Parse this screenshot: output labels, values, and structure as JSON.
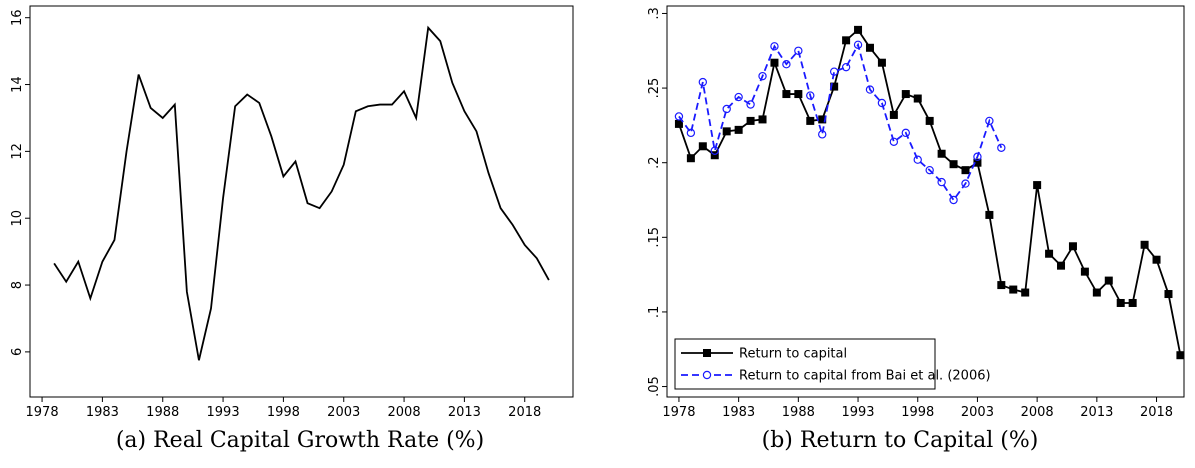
{
  "chart_data": [
    {
      "type": "line",
      "title": "(a) Real Capital Growth Rate (%)",
      "x": [
        1979,
        1980,
        1981,
        1982,
        1983,
        1984,
        1985,
        1986,
        1987,
        1988,
        1989,
        1990,
        1991,
        1992,
        1993,
        1994,
        1995,
        1996,
        1997,
        1998,
        1999,
        2000,
        2001,
        2002,
        2003,
        2004,
        2005,
        2006,
        2007,
        2008,
        2009,
        2010,
        2011,
        2012,
        2013,
        2014,
        2015,
        2016,
        2017,
        2018,
        2019,
        2020
      ],
      "series": [
        {
          "color": "#000000",
          "line_style": "solid",
          "marker": "none",
          "values": [
            8.65,
            8.1,
            8.7,
            7.6,
            8.7,
            9.35,
            12.0,
            14.3,
            13.3,
            13.0,
            13.4,
            7.8,
            5.75,
            7.3,
            10.6,
            13.35,
            13.7,
            13.45,
            12.45,
            11.25,
            11.7,
            10.45,
            10.3,
            10.8,
            11.6,
            13.2,
            13.35,
            13.4,
            13.4,
            13.8,
            13.0,
            15.7,
            15.3,
            14.05,
            13.2,
            12.6,
            11.35,
            10.3,
            9.8,
            9.2,
            8.8,
            8.15
          ]
        }
      ],
      "xlim": [
        1977,
        2022
      ],
      "xticks": [
        1978,
        1983,
        1988,
        1993,
        1998,
        2003,
        2008,
        2013,
        2018
      ],
      "ylim": [
        4.65,
        16.35
      ],
      "yticks": [
        6,
        8,
        10,
        12,
        14,
        16
      ]
    },
    {
      "type": "line",
      "title": "(b) Return to Capital (%)",
      "x": [
        1978,
        1979,
        1980,
        1981,
        1982,
        1983,
        1984,
        1985,
        1986,
        1987,
        1988,
        1989,
        1990,
        1991,
        1992,
        1993,
        1994,
        1995,
        1996,
        1997,
        1998,
        1999,
        2000,
        2001,
        2002,
        2003,
        2004,
        2005,
        2006,
        2007,
        2008,
        2009,
        2010,
        2011,
        2012,
        2013,
        2014,
        2015,
        2016,
        2017,
        2018,
        2019,
        2020
      ],
      "series": [
        {
          "name": "Return to capital",
          "color": "#000000",
          "line_style": "solid",
          "marker": "square",
          "values": [
            0.226,
            0.203,
            0.211,
            0.205,
            0.221,
            0.222,
            0.228,
            0.229,
            0.267,
            0.246,
            0.246,
            0.228,
            0.229,
            0.251,
            0.282,
            0.289,
            0.277,
            0.267,
            0.232,
            0.246,
            0.243,
            0.228,
            0.206,
            0.199,
            0.195,
            0.2,
            0.165,
            0.118,
            0.115,
            0.113,
            0.185,
            0.139,
            0.131,
            0.144,
            0.127,
            0.113,
            0.121,
            0.106,
            0.106,
            0.145,
            0.135,
            0.112,
            0.071
          ]
        },
        {
          "name": "Return to capital from Bai et al. (2006)",
          "color": "#1a1aff",
          "line_style": "dashed",
          "marker": "circle",
          "values": [
            0.231,
            0.22,
            0.254,
            0.208,
            0.236,
            0.244,
            0.239,
            0.258,
            0.278,
            0.266,
            0.275,
            0.245,
            0.219,
            0.261,
            0.264,
            0.279,
            0.249,
            0.24,
            0.214,
            0.22,
            0.202,
            0.195,
            0.187,
            0.175,
            0.186,
            0.204,
            0.228,
            0.21,
            null,
            null,
            null,
            null,
            null,
            null,
            null,
            null,
            null,
            null,
            null,
            null,
            null,
            null,
            null
          ]
        }
      ],
      "xlim": [
        1977,
        2020.3
      ],
      "xticks": [
        1978,
        1983,
        1988,
        1993,
        1998,
        2003,
        2008,
        2013,
        2018
      ],
      "ylim": [
        0.043,
        0.305
      ],
      "yticks": [
        {
          "value": 0.05,
          "label": ".05"
        },
        {
          "value": 0.1,
          "label": ".1"
        },
        {
          "value": 0.15,
          "label": ".15"
        },
        {
          "value": 0.2,
          "label": ".2"
        },
        {
          "value": 0.25,
          "label": ".25"
        },
        {
          "value": 0.3,
          "label": ".3"
        }
      ],
      "legend": "lower left"
    }
  ]
}
